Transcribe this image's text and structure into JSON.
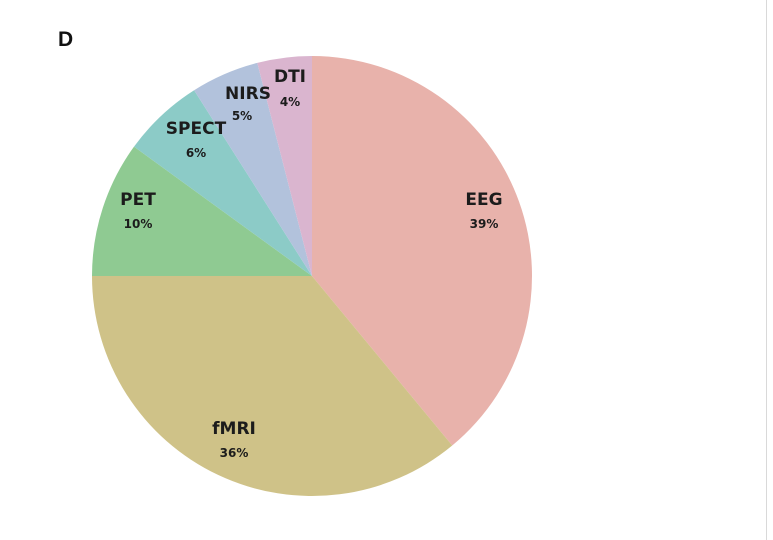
{
  "panel_label": "D",
  "chart_data": {
    "type": "pie",
    "start_angle_deg": 0,
    "direction": "clockwise",
    "slices": [
      {
        "label": "EEG",
        "value": 39,
        "value_label": "39%",
        "color": "#e8b2ab"
      },
      {
        "label": "fMRI",
        "value": 36,
        "value_label": "36%",
        "color": "#cfc288"
      },
      {
        "label": "PET",
        "value": 10,
        "value_label": "10%",
        "color": "#8fca92"
      },
      {
        "label": "SPECT",
        "value": 6,
        "value_label": "6%",
        "color": "#8ccbc7"
      },
      {
        "label": "NIRS",
        "value": 5,
        "value_label": "5%",
        "color": "#b2c2dc"
      },
      {
        "label": "DTI",
        "value": 4,
        "value_label": "4%",
        "color": "#dab5cf"
      }
    ]
  }
}
